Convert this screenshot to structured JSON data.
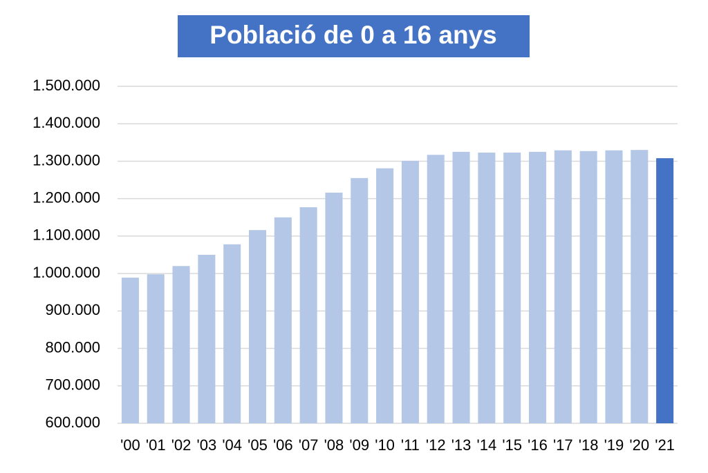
{
  "chart_data": {
    "type": "bar",
    "title": "Població de 0 a 16 anys",
    "categories": [
      "'00",
      "'01",
      "'02",
      "'03",
      "'04",
      "'05",
      "'06",
      "'07",
      "'08",
      "'09",
      "'10",
      "'11",
      "'12",
      "'13",
      "'14",
      "'15",
      "'16",
      "'17",
      "'18",
      "'19",
      "'20",
      "'21"
    ],
    "values": [
      989000,
      998000,
      1020000,
      1050000,
      1078000,
      1116000,
      1150000,
      1177000,
      1216000,
      1255000,
      1281000,
      1301000,
      1317000,
      1325000,
      1323000,
      1323000,
      1325000,
      1329000,
      1327000,
      1329000,
      1330000,
      1308000
    ],
    "colors": [
      "#b4c7e7",
      "#b4c7e7",
      "#b4c7e7",
      "#b4c7e7",
      "#b4c7e7",
      "#b4c7e7",
      "#b4c7e7",
      "#b4c7e7",
      "#b4c7e7",
      "#b4c7e7",
      "#b4c7e7",
      "#b4c7e7",
      "#b4c7e7",
      "#b4c7e7",
      "#b4c7e7",
      "#b4c7e7",
      "#b4c7e7",
      "#b4c7e7",
      "#b4c7e7",
      "#b4c7e7",
      "#b4c7e7",
      "#4472c4"
    ],
    "ylim": [
      600000,
      1500000
    ],
    "yticks": [
      {
        "value": 600000,
        "label": "600.000"
      },
      {
        "value": 700000,
        "label": "700.000"
      },
      {
        "value": 800000,
        "label": "800.000"
      },
      {
        "value": 900000,
        "label": "900.000"
      },
      {
        "value": 1000000,
        "label": "1.000.000"
      },
      {
        "value": 1100000,
        "label": "1.100.000"
      },
      {
        "value": 1200000,
        "label": "1.200.000"
      },
      {
        "value": 1300000,
        "label": "1.300.000"
      },
      {
        "value": 1400000,
        "label": "1.400.000"
      },
      {
        "value": 1500000,
        "label": "1.500.000"
      }
    ],
    "grid": true,
    "title_background": "#4472c4"
  }
}
